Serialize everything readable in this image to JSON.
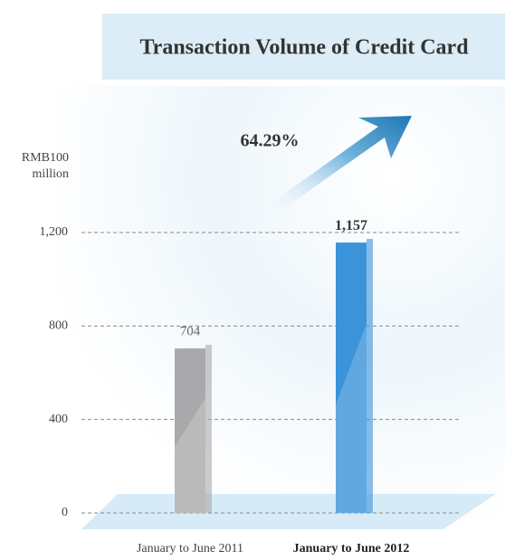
{
  "chart_data": {
    "type": "bar",
    "title": "Transaction Volume of Credit Card",
    "y_label": "RMB100 million",
    "annotation": "64.29%",
    "categories": [
      "January to June 2011",
      "January to June 2012"
    ],
    "values": [
      704,
      1157
    ],
    "value_labels": [
      "704",
      "1,157"
    ],
    "colors": [
      "#a9a9ab",
      "#3b93d9"
    ],
    "ylim": [
      0,
      1200
    ],
    "yticks": [
      0,
      400,
      800,
      {
        "value": 1200,
        "label": "1,200"
      }
    ],
    "grid": true
  }
}
